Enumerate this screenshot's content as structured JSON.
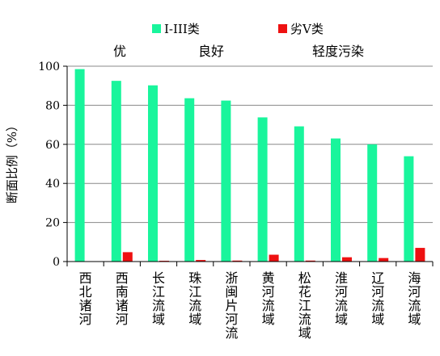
{
  "chart_data": {
    "type": "bar",
    "title": "",
    "xlabel": "",
    "ylabel": "断面比例（%）",
    "ylim": [
      0,
      100
    ],
    "yticks": [
      0,
      20,
      40,
      60,
      80,
      100
    ],
    "grid": true,
    "legend_position": "top",
    "categories": [
      "西北诸河",
      "西南诸河",
      "长江流域",
      "珠江流域",
      "浙闽片河流",
      "黄河流域",
      "松花江流域",
      "淮河流域",
      "辽河流域",
      "海河流域"
    ],
    "series": [
      {
        "name": "I-III类",
        "color": "#19f59c",
        "values": [
          98.5,
          92.5,
          90.2,
          83.6,
          82.4,
          73.8,
          69.2,
          63.0,
          60.0,
          53.9
        ]
      },
      {
        "name": "劣V类",
        "color": "#ee1111",
        "values": [
          0,
          4.8,
          0.4,
          0.8,
          0.5,
          3.5,
          0.5,
          2.2,
          1.8,
          7.0
        ]
      }
    ],
    "annotations": [
      "优",
      "良好",
      "轻度污染"
    ]
  }
}
